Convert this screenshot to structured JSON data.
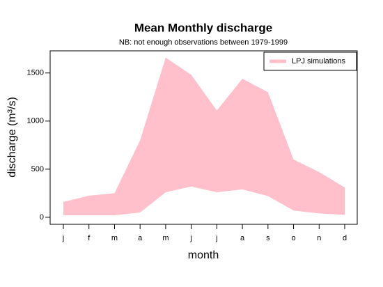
{
  "chart_data": {
    "type": "band",
    "title": "Mean Monthly discharge",
    "subtitle": "NB: not enough observations between 1979-1999",
    "x_label": "month",
    "y_label": "discharge (m³/s)",
    "categories": [
      "j",
      "f",
      "m",
      "a",
      "m",
      "j",
      "j",
      "a",
      "s",
      "o",
      "n",
      "d"
    ],
    "series": [
      {
        "name": "LPJ simulations",
        "color": "#ffc0cb",
        "upper": [
          160,
          225,
          250,
          800,
          1660,
          1480,
          1110,
          1440,
          1300,
          600,
          470,
          310
        ],
        "lower": [
          20,
          20,
          20,
          50,
          260,
          320,
          260,
          290,
          220,
          70,
          40,
          25
        ]
      }
    ],
    "ylim": [
      -73,
      1730
    ],
    "yticks": [
      0,
      500,
      1000,
      1500
    ],
    "legend": "topright"
  }
}
